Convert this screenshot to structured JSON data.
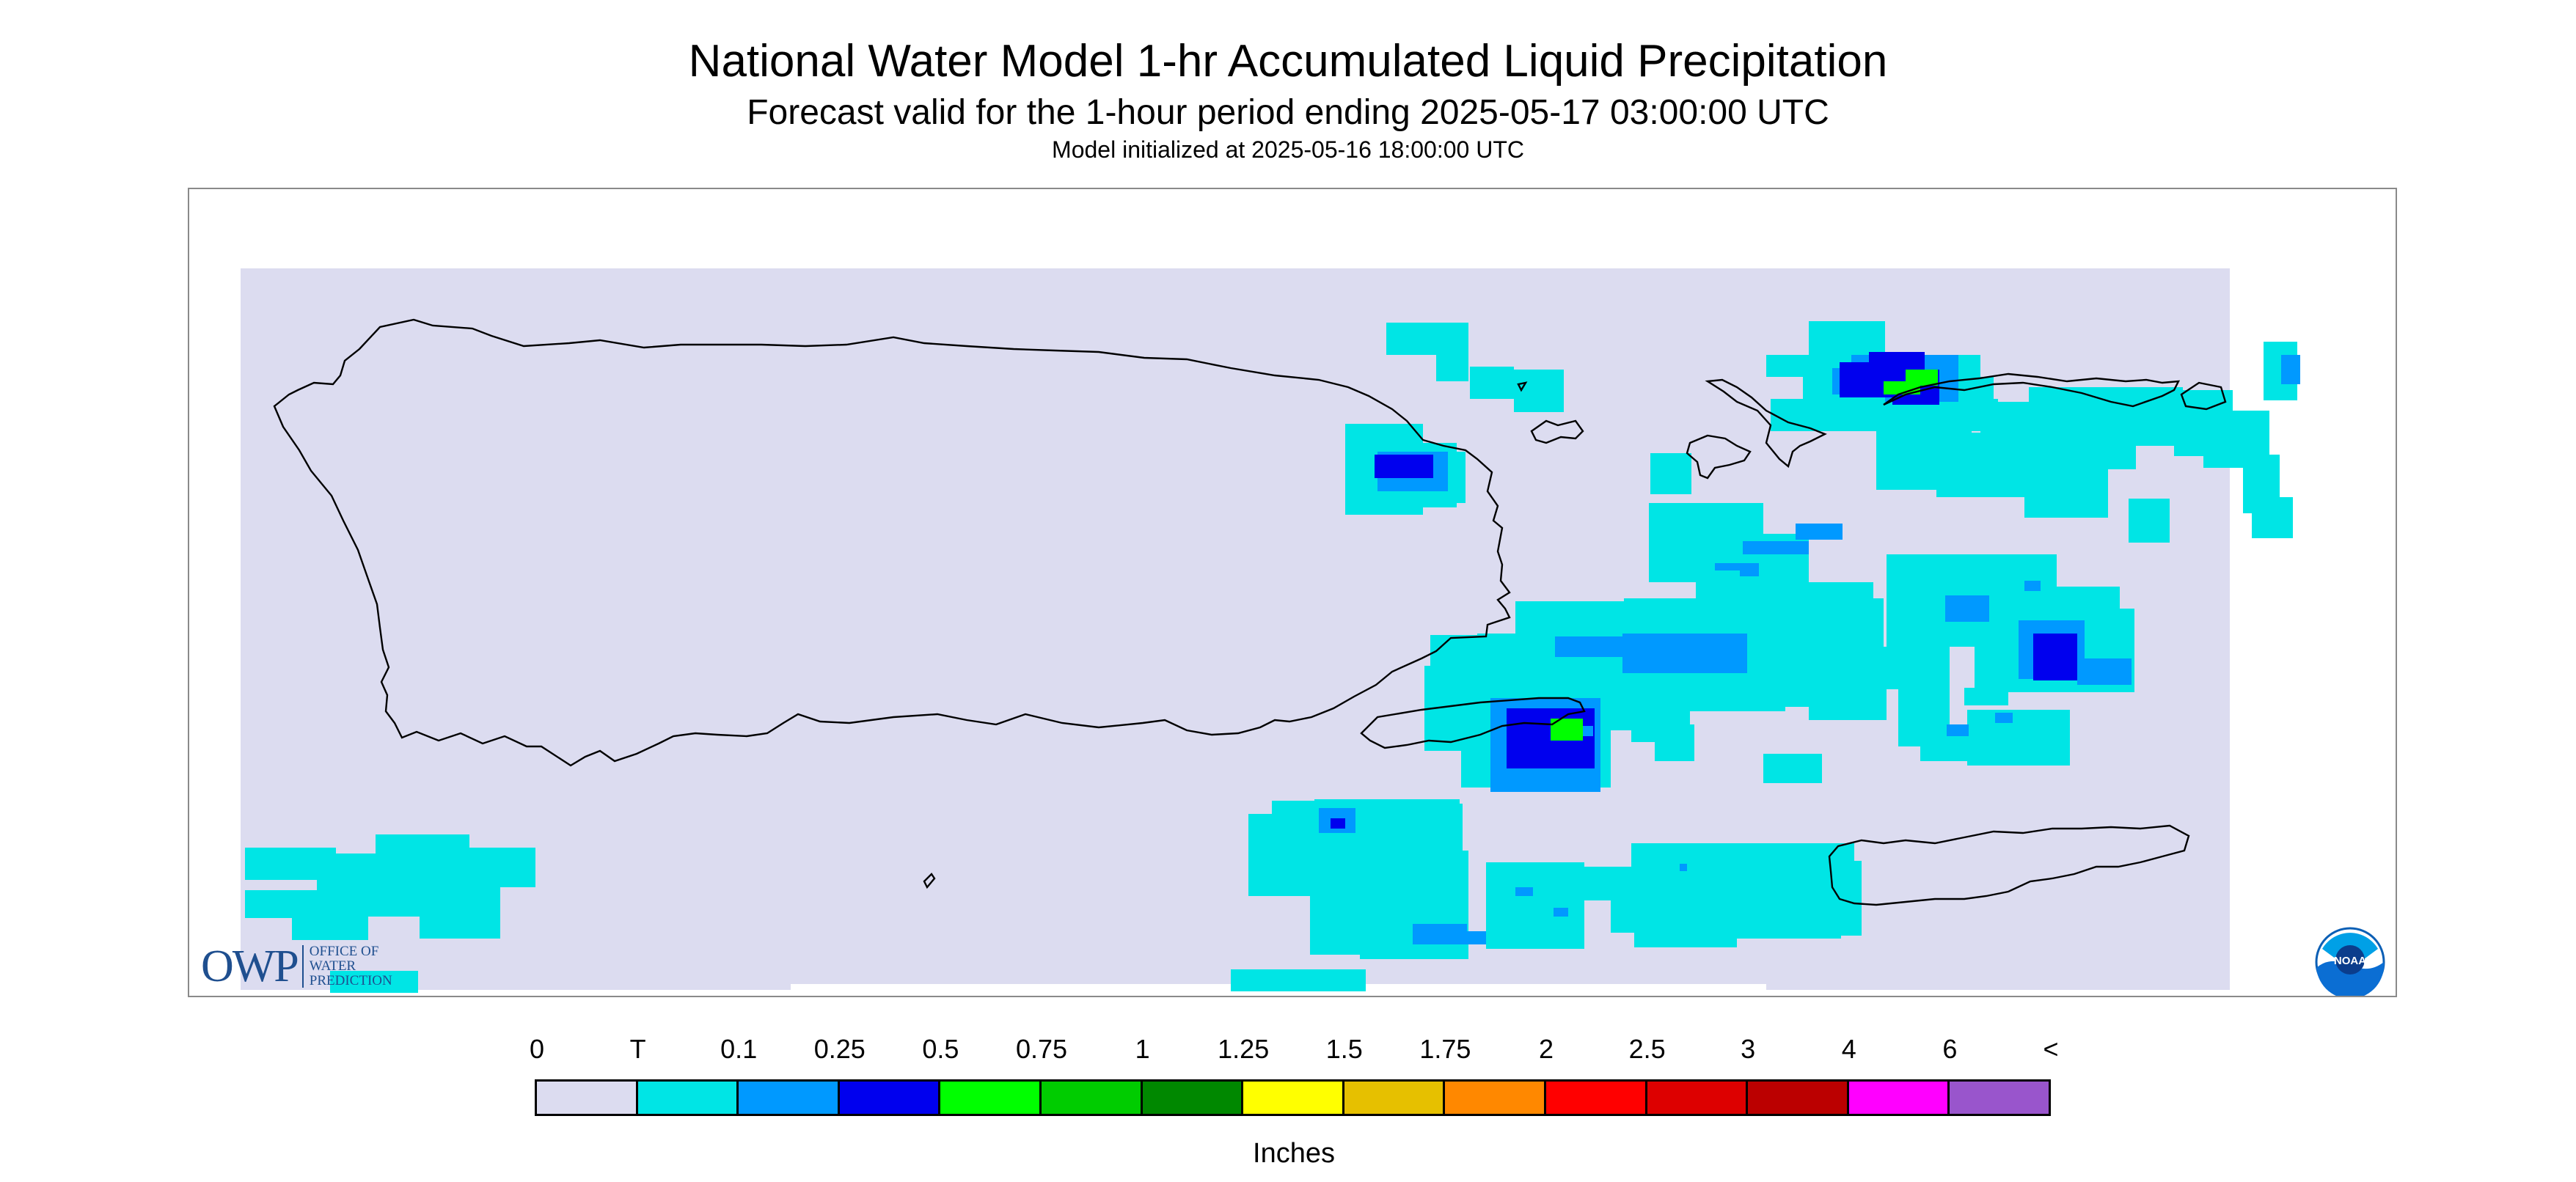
{
  "header": {
    "title": "National Water Model 1-hr Accumulated Liquid Precipitation",
    "subtitle": "Forecast valid for the 1-hour period ending 2025-05-17 03:00:00 UTC",
    "init": "Model initialized at 2025-05-16 18:00:00 UTC"
  },
  "map": {
    "region": "Puerto Rico and U.S. Virgin Islands",
    "background_color": "#dcdcf0",
    "outline_color": "#000000",
    "precip_cells": [
      {
        "level": "T",
        "count_estimate": "many"
      },
      {
        "level": "0.1"
      },
      {
        "level": "0.25"
      },
      {
        "level": "0.5"
      }
    ]
  },
  "logos": {
    "owp_mark": "OWP",
    "owp_lines": [
      "OFFICE OF",
      "WATER",
      "PREDICTION"
    ],
    "noaa_text": "NOAA"
  },
  "legend": {
    "unit": "Inches",
    "labels": [
      "0",
      "T",
      "0.1",
      "0.25",
      "0.5",
      "0.75",
      "1",
      "1.25",
      "1.5",
      "1.75",
      "2",
      "2.5",
      "3",
      "4",
      "6",
      "<"
    ],
    "colors": [
      "#dcdcf0",
      "#00e5e5",
      "#0099ff",
      "#0000ee",
      "#00ff00",
      "#00cc00",
      "#008800",
      "#ffff00",
      "#e6c000",
      "#ff8800",
      "#ff0000",
      "#dd0000",
      "#bb0000",
      "#ff00ff",
      "#9955cc"
    ]
  }
}
